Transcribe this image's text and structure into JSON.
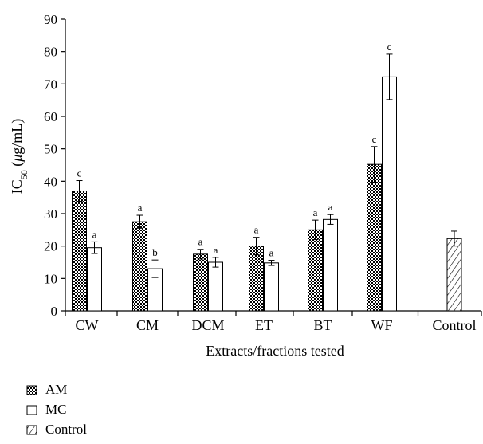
{
  "chart_data": {
    "type": "bar",
    "xlabel": "Extracts/fractions tested",
    "ylabel": {
      "main": "IC",
      "sub": "50",
      "rest": " (",
      "mu": "μ",
      "unit": "g/mL)"
    },
    "ylim": [
      0,
      90
    ],
    "yticks": [
      "0",
      "10",
      "20",
      "30",
      "40",
      "50",
      "60",
      "70",
      "80",
      "90"
    ],
    "categories": [
      "CW",
      "CM",
      "DCM",
      "ET",
      "BT",
      "WF",
      "Control"
    ],
    "grid": false,
    "legend_position": "bottom-left",
    "series": [
      {
        "name": "AM",
        "pattern": "checker",
        "values": [
          37,
          27.5,
          17.5,
          20,
          25,
          45.2,
          null
        ],
        "errors": [
          3.2,
          2,
          1.5,
          2.7,
          3,
          5.5,
          null
        ],
        "labels": [
          "c",
          "a",
          "a",
          "a",
          "a",
          "c",
          null
        ]
      },
      {
        "name": "MC",
        "pattern": "white",
        "values": [
          19.5,
          13,
          15,
          14.8,
          28.2,
          72.2,
          null
        ],
        "errors": [
          1.8,
          2.7,
          1.5,
          0.8,
          1.5,
          7,
          null
        ],
        "labels": [
          "a",
          "b",
          "a",
          "a",
          "a",
          "c",
          null
        ]
      },
      {
        "name": "Control",
        "pattern": "hatch",
        "values": [
          null,
          null,
          null,
          null,
          null,
          null,
          22.3
        ],
        "errors": [
          null,
          null,
          null,
          null,
          null,
          null,
          2.3
        ],
        "labels": [
          null,
          null,
          null,
          null,
          null,
          null,
          null
        ]
      }
    ]
  }
}
